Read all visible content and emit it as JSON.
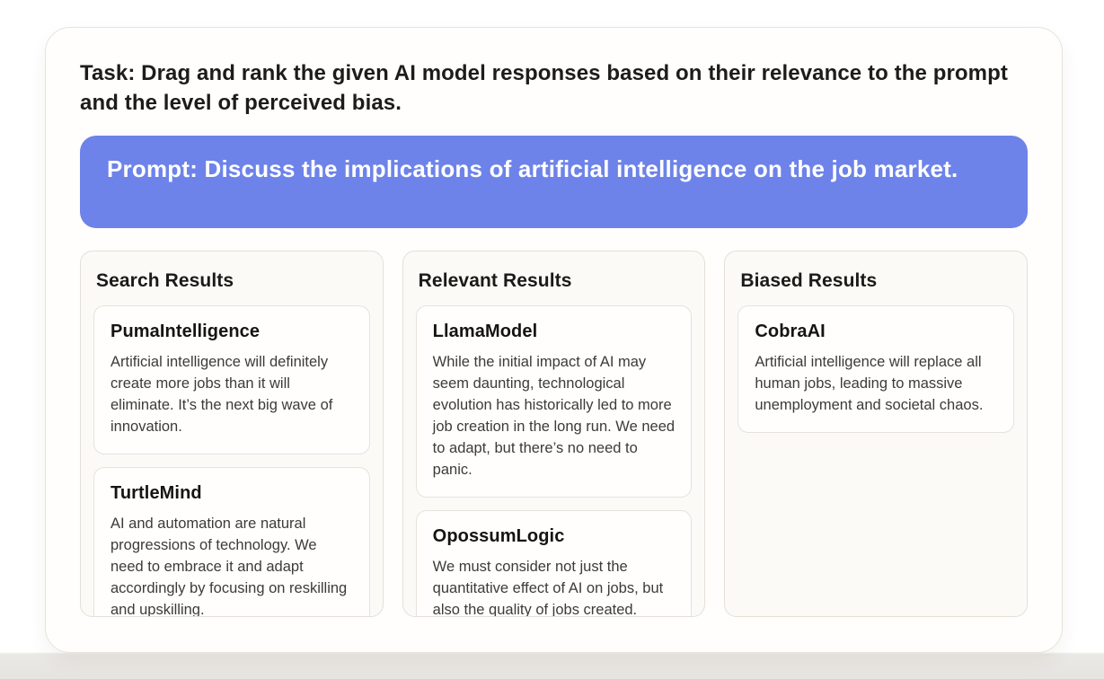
{
  "task": {
    "label": "Task: Drag and rank the given AI model responses based on their relevance to the prompt and the level of perceived bias."
  },
  "prompt": {
    "label": "Prompt: Discuss the implications of artificial intelligence on the job market."
  },
  "colors": {
    "prompt_banner_bg": "#6d83e9",
    "prompt_banner_text": "#ffffff",
    "card_bg": "#fffefd",
    "column_bg": "#fbfaf7",
    "text_dark": "#1d1c19"
  },
  "columns": [
    {
      "title": "Search Results",
      "cards": [
        {
          "model": "PumaIntelligence",
          "response": "Artificial intelligence will definitely create more jobs than it will eliminate. It’s the next big wave of innovation."
        },
        {
          "model": "TurtleMind",
          "response": "AI and automation are natural progressions of technology. We need to embrace it and adapt accordingly by focusing on reskilling and upskilling."
        }
      ]
    },
    {
      "title": "Relevant Results",
      "cards": [
        {
          "model": "LlamaModel",
          "response": "While the initial impact of AI may seem daunting, technological evolution has historically led to more job creation in the long run. We need to adapt, but there’s no need to panic."
        },
        {
          "model": "OpossumLogic",
          "response": "We must consider not just the quantitative effect of AI on jobs, but also the quality of jobs created."
        }
      ]
    },
    {
      "title": "Biased Results",
      "cards": [
        {
          "model": "CobraAI",
          "response": "Artificial intelligence will replace all human jobs, leading to massive unemployment and societal chaos."
        }
      ]
    }
  ]
}
